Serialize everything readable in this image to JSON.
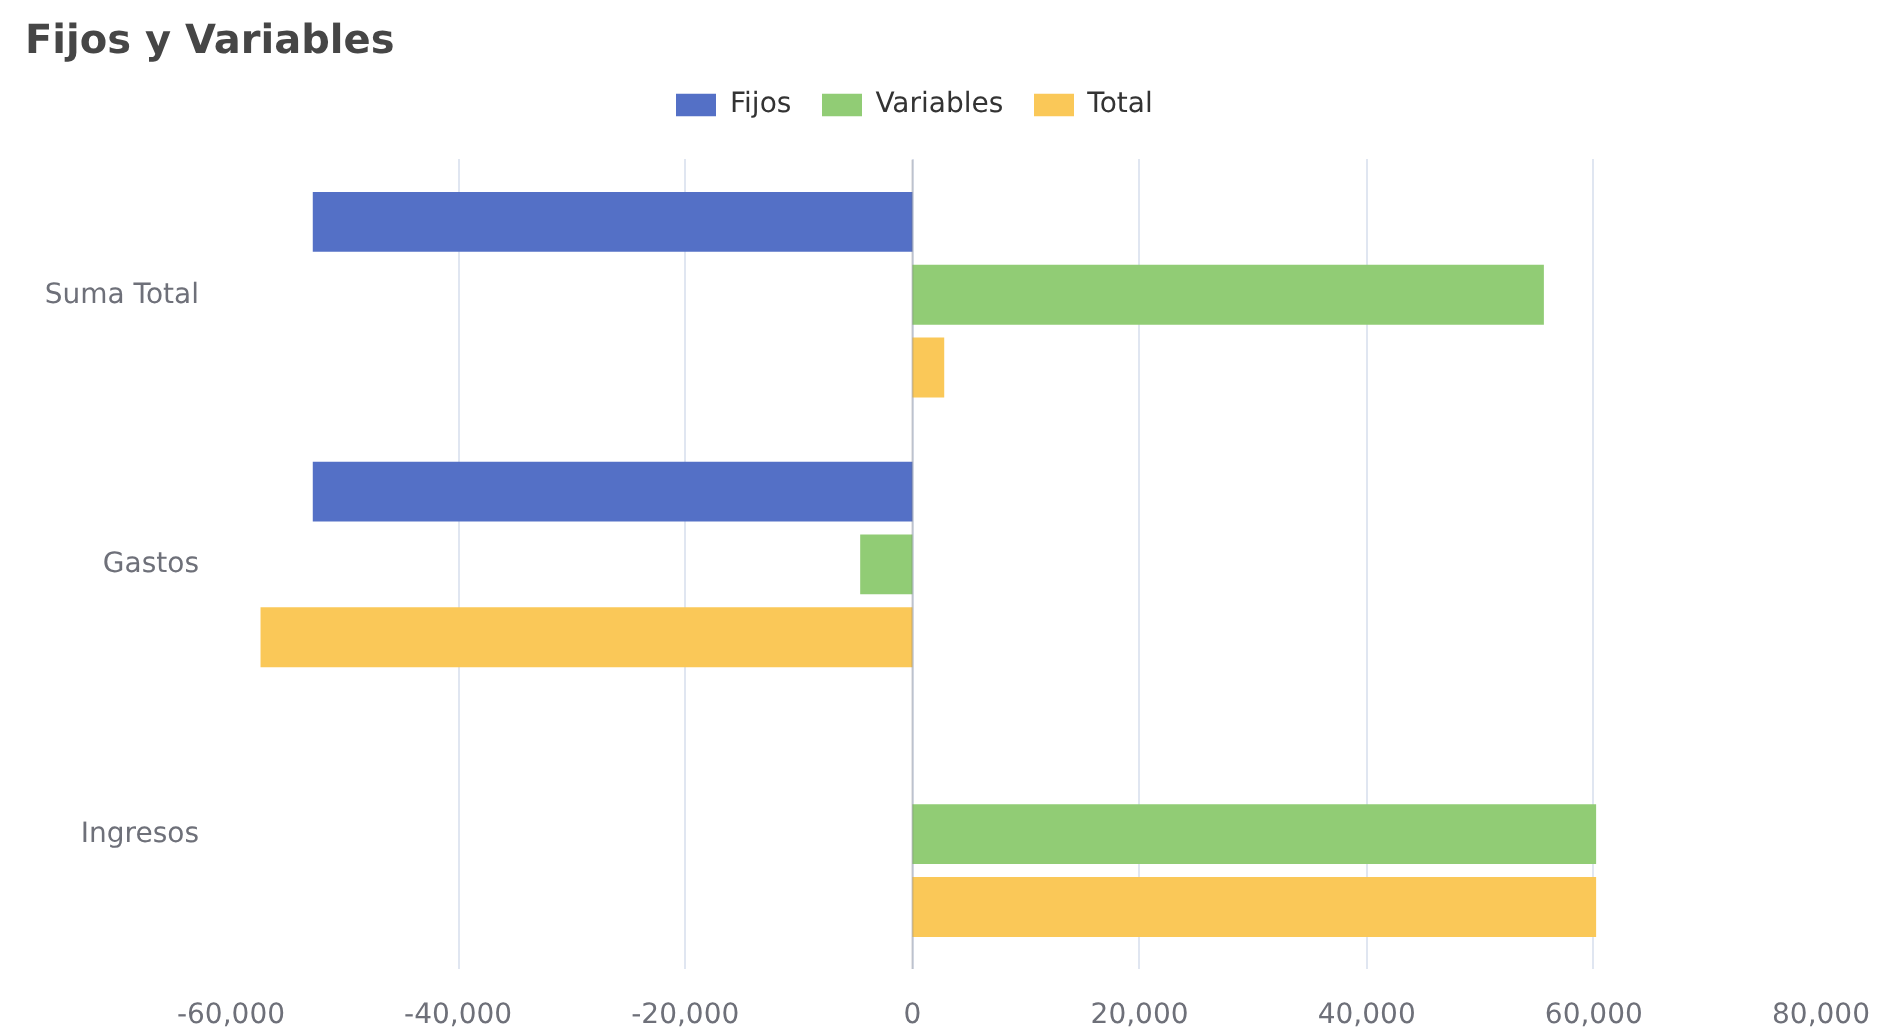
{
  "chart_data": {
    "type": "bar",
    "orientation": "horizontal",
    "title": "Fijos y Variables",
    "categories": [
      "Suma Total",
      "Gastos",
      "Ingresos"
    ],
    "series": [
      {
        "name": "Fijos",
        "color": "#5470c6",
        "values": [
          -52800,
          -52800,
          null
        ]
      },
      {
        "name": "Variables",
        "color": "#91cc75",
        "values": [
          55600,
          -4600,
          60200
        ]
      },
      {
        "name": "Total",
        "color": "#fac858",
        "values": [
          2800,
          -57400,
          60200
        ]
      }
    ],
    "xlim": [
      -60000,
      80000
    ],
    "xticks": [
      {
        "value": -60000,
        "label": "-60,000"
      },
      {
        "value": -40000,
        "label": "-40,000"
      },
      {
        "value": -20000,
        "label": "-20,000"
      },
      0,
      {
        "value": 20000,
        "label": "20,000"
      },
      {
        "value": 40000,
        "label": "40,000"
      },
      {
        "value": 60000,
        "label": "60,000"
      },
      {
        "value": 80000,
        "label": "80,000"
      }
    ],
    "grid": "x",
    "legend": "top"
  }
}
